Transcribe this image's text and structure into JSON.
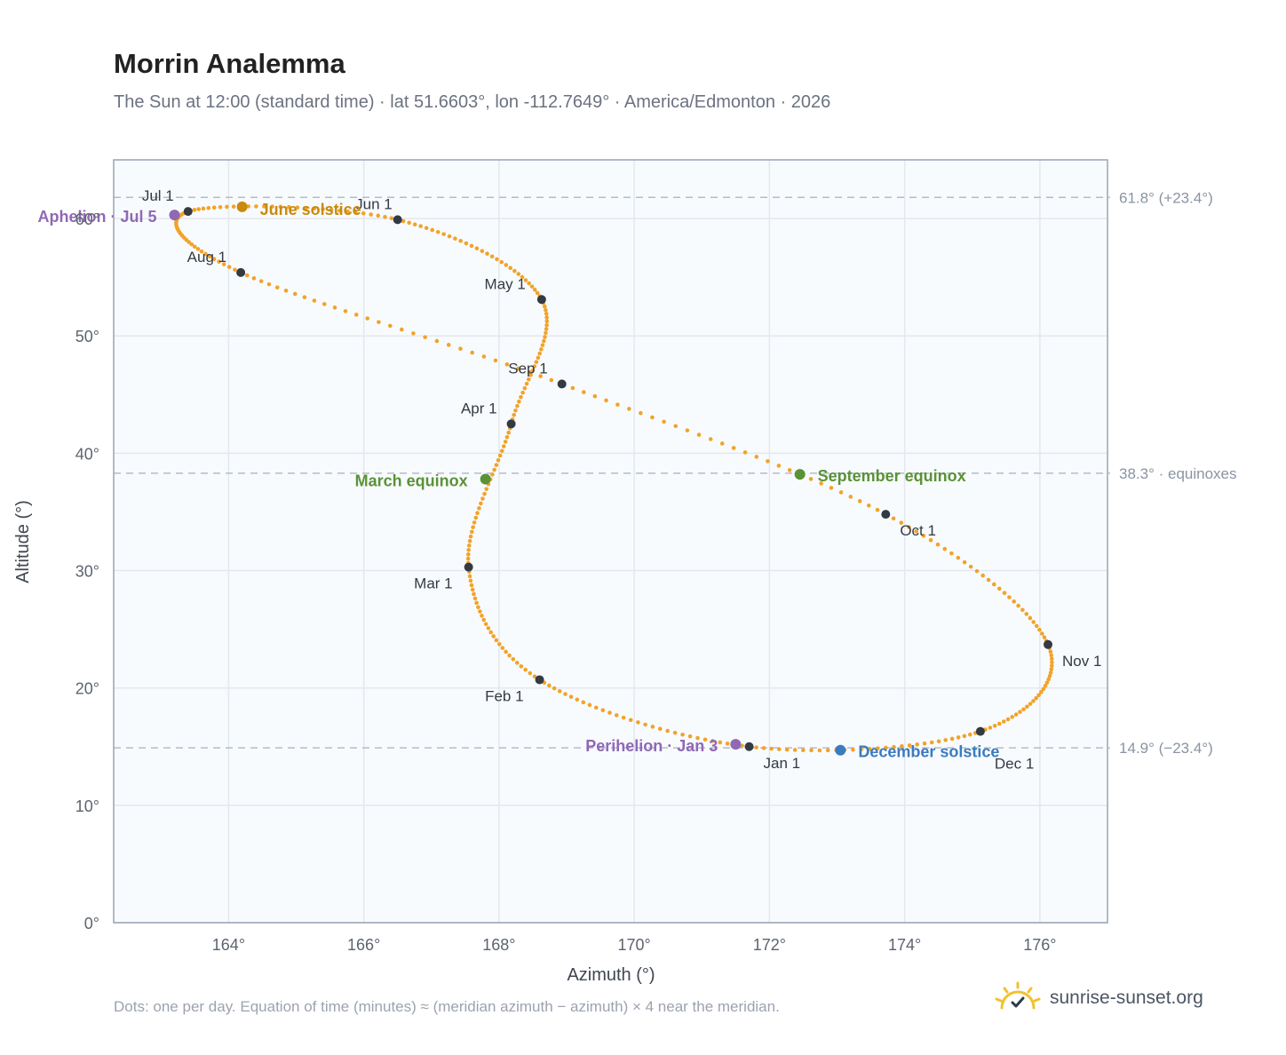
{
  "header": {
    "title": "Morrin Analemma",
    "subtitle": "The Sun at 12:00 (standard time) · lat 51.6603°, lon -112.7649° · America/Edmonton · 2026"
  },
  "footer": {
    "note": "Dots: one per day. Equation of time (minutes) ≈ (meridian azimuth − azimuth) × 4 near the meridian.",
    "brand": "sunrise-sunset.org",
    "brand_icon": "sun-check-icon"
  },
  "colors": {
    "curve": "#f2a32a",
    "month_marker": "#333a44",
    "june_solstice": "#c98a0e",
    "december_solstice": "#3b7bbf",
    "equinox": "#5a9236",
    "apsis": "#9068b4",
    "plot_bg": "#f8fbfe",
    "reference_line": "#b5bcc6"
  },
  "chart_data": {
    "type": "scatter",
    "xlabel": "Azimuth (°)",
    "ylabel": "Altitude (°)",
    "xlim": [
      162.3,
      177
    ],
    "ylim": [
      0,
      65
    ],
    "x_ticks": [
      164,
      166,
      168,
      170,
      172,
      174,
      176
    ],
    "x_tick_labels": [
      "164°",
      "166°",
      "168°",
      "170°",
      "172°",
      "174°",
      "176°"
    ],
    "y_ticks": [
      0,
      10,
      20,
      30,
      40,
      50,
      60
    ],
    "y_tick_labels": [
      "0°",
      "10°",
      "20°",
      "30°",
      "40°",
      "50°",
      "60°"
    ],
    "grid": true,
    "reference_lines": [
      {
        "y": 61.8,
        "label": "61.8° (+23.4°)"
      },
      {
        "y": 38.3,
        "label": "38.3° · equinoxes"
      },
      {
        "y": 14.9,
        "label": "14.9° (−23.4°)"
      }
    ],
    "months": [
      {
        "label": "Jan 1",
        "x": 171.7,
        "y": 15.0
      },
      {
        "label": "Feb 1",
        "x": 168.6,
        "y": 20.7
      },
      {
        "label": "Mar 1",
        "x": 167.55,
        "y": 30.3
      },
      {
        "label": "Apr 1",
        "x": 168.18,
        "y": 42.5
      },
      {
        "label": "May 1",
        "x": 168.63,
        "y": 53.1
      },
      {
        "label": "Jun 1",
        "x": 166.5,
        "y": 59.9
      },
      {
        "label": "Jul 1",
        "x": 163.4,
        "y": 60.6
      },
      {
        "label": "Aug 1",
        "x": 164.18,
        "y": 55.4
      },
      {
        "label": "Sep 1",
        "x": 168.93,
        "y": 45.9
      },
      {
        "label": "Oct 1",
        "x": 173.72,
        "y": 34.8
      },
      {
        "label": "Nov 1",
        "x": 176.12,
        "y": 23.7
      },
      {
        "label": "Dec 1",
        "x": 175.12,
        "y": 16.3
      }
    ],
    "events": [
      {
        "label": "June solstice",
        "x": 164.2,
        "y": 61.0,
        "color": "#c98a0e"
      },
      {
        "label": "December solstice",
        "x": 173.05,
        "y": 14.7,
        "color": "#3b7bbf"
      },
      {
        "label": "March equinox",
        "x": 167.8,
        "y": 37.8,
        "color": "#5a9236"
      },
      {
        "label": "September equinox",
        "x": 172.45,
        "y": 38.2,
        "color": "#5a9236"
      },
      {
        "label": "Aphelion · Jul 5",
        "x": 163.2,
        "y": 60.3,
        "color": "#9068b4"
      },
      {
        "label": "Perihelion · Jan 3",
        "x": 171.5,
        "y": 15.2,
        "color": "#9068b4"
      }
    ]
  }
}
